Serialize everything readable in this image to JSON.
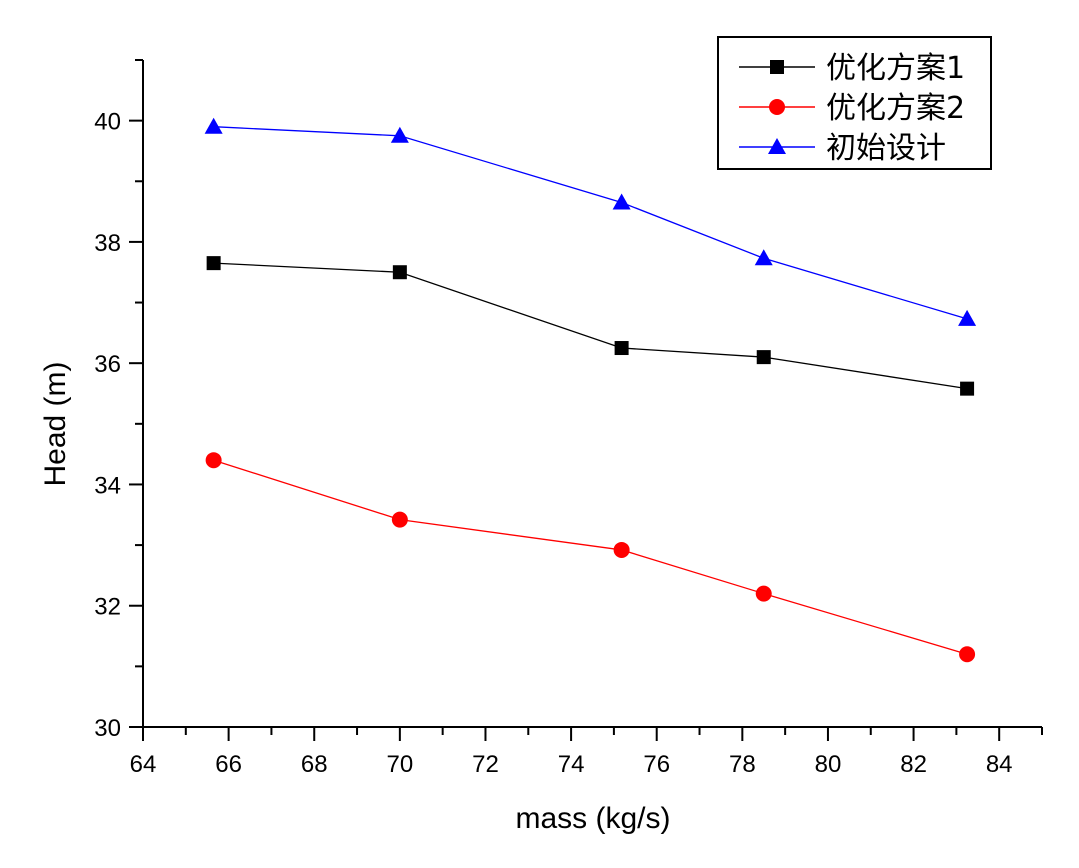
{
  "chart_data": {
    "type": "line",
    "title": "",
    "xlabel": "mass (kg/s)",
    "ylabel": "Head (m)",
    "xlim": [
      64,
      85
    ],
    "ylim": [
      30,
      41
    ],
    "x_ticks": [
      64,
      66,
      68,
      70,
      72,
      74,
      76,
      78,
      80,
      82,
      84
    ],
    "y_ticks": [
      30,
      32,
      34,
      36,
      38,
      40
    ],
    "grid": false,
    "legend_position": "top-right",
    "x": [
      65.65,
      70.0,
      75.18,
      78.5,
      83.25
    ],
    "series": [
      {
        "name": "优化方案1",
        "color": "#000000",
        "marker": "square",
        "values": [
          37.65,
          37.5,
          36.25,
          36.1,
          35.58
        ]
      },
      {
        "name": "优化方案2",
        "color": "#ff0000",
        "marker": "circle",
        "values": [
          34.4,
          33.42,
          32.92,
          32.2,
          31.2
        ]
      },
      {
        "name": "初始设计",
        "color": "#0000ff",
        "marker": "triangle",
        "values": [
          39.9,
          39.75,
          38.65,
          37.73,
          36.73
        ]
      }
    ]
  }
}
